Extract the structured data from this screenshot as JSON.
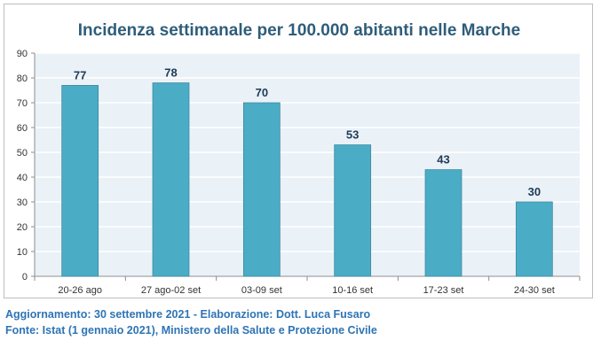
{
  "chart_data": {
    "type": "bar",
    "title": "Incidenza settimanale per 100.000 abitanti nelle Marche",
    "categories": [
      "20-26 ago",
      "27 ago-02 set",
      "03-09 set",
      "10-16 set",
      "17-23 set",
      "24-30 set"
    ],
    "values": [
      77,
      78,
      70,
      53,
      43,
      30
    ],
    "data_labels": [
      "77",
      "78",
      "70",
      "53",
      "43",
      "30"
    ],
    "ylim": [
      0,
      90
    ],
    "yticks": [
      0,
      10,
      20,
      30,
      40,
      50,
      60,
      70,
      80,
      90
    ],
    "grid": true,
    "bar_color": "#4bacc6",
    "plot_background": "#eaf1f7",
    "xlabel": "",
    "ylabel": ""
  },
  "footer": {
    "line1": "Aggiornamento: 30 settembre 2021 - Elaborazione: Dott. Luca Fusaro",
    "line2": "Fonte: Istat (1 gennaio 2021), Ministero della Salute e Protezione Civile"
  }
}
